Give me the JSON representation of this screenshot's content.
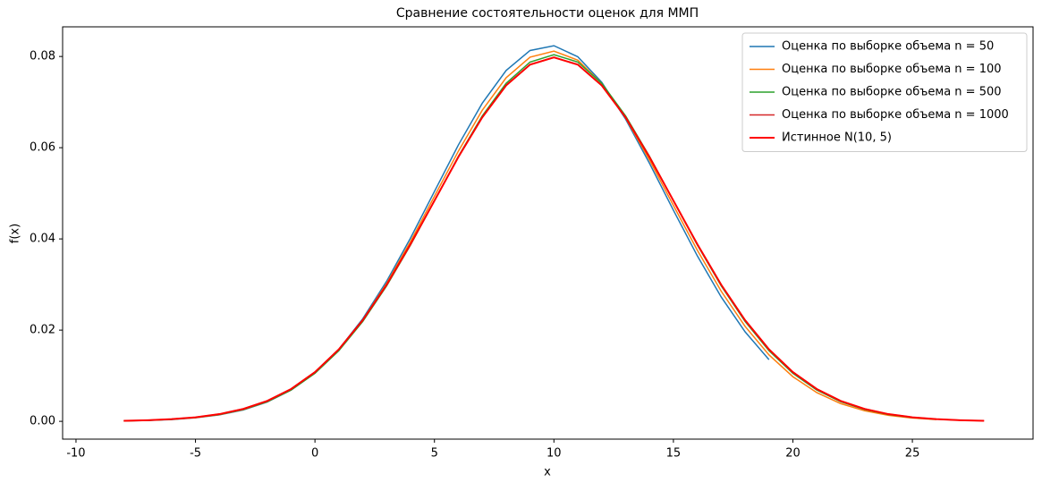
{
  "chart_data": {
    "type": "line",
    "title": "Сравнение состоятельности оценок для ММП",
    "x_label": "x",
    "y_label": "f(x)",
    "x": [
      -8,
      -7,
      -6,
      -5,
      -4,
      -3,
      -2,
      -1,
      0,
      1,
      2,
      3,
      4,
      5,
      6,
      7,
      8,
      9,
      10,
      11,
      12,
      13,
      14,
      15,
      16,
      17,
      18,
      19,
      20,
      21,
      22,
      23,
      24,
      25,
      26,
      27,
      28
    ],
    "series": [
      {
        "name": "Оценка по выборке объема n = 50",
        "color": "#1f77b4",
        "width": 1.5,
        "values": [
          9.5e-05,
          0.0002,
          0.0004,
          0.00077,
          0.00141,
          0.0025,
          0.00422,
          0.00683,
          0.01061,
          0.01579,
          0.02249,
          0.03072,
          0.0402,
          0.0504,
          0.06058,
          0.06974,
          0.07693,
          0.08131,
          0.08236,
          0.07993,
          0.07434,
          0.06625,
          0.05657,
          0.04629,
          0.03629,
          0.02726,
          0.01963,
          0.01353,
          null,
          null,
          null,
          null,
          null,
          null,
          null,
          null,
          null
        ]
      },
      {
        "name": "Оценка по выборке объема n = 100",
        "color": "#ff7f0e",
        "width": 1.5,
        "values": [
          0.000105,
          0.00022,
          0.00043,
          0.00081,
          0.00147,
          0.00257,
          0.0043,
          0.0069,
          0.01063,
          0.0157,
          0.02224,
          0.03024,
          0.03944,
          0.04934,
          0.05923,
          0.0682,
          0.07534,
          0.07984,
          0.08118,
          0.07919,
          0.0741,
          0.06652,
          0.05729,
          0.04734,
          0.03752,
          0.02853,
          0.02082,
          0.01457,
          0.00978,
          0.0063,
          0.00389,
          0.00231,
          0.00131,
          0.00072,
          0.00038,
          null,
          null
        ]
      },
      {
        "name": "Оценка по выборке объема n = 500",
        "color": "#2ca02c",
        "width": 1.5,
        "values": [
          0.00011,
          0.00023,
          0.00044,
          0.00083,
          0.0015,
          0.00259,
          0.00431,
          0.00687,
          0.01053,
          0.0155,
          0.02189,
          0.0297,
          0.03868,
          0.04837,
          0.05808,
          0.06696,
          0.07412,
          0.07878,
          0.0804,
          0.07878,
          0.07412,
          0.06696,
          0.05808,
          0.04837,
          0.03868,
          0.0297,
          0.02189,
          0.0155,
          0.01053,
          0.00687,
          0.00431,
          0.00259,
          0.0015,
          0.00083,
          0.00044,
          null,
          null
        ]
      },
      {
        "name": "Оценка по выборке объема n = 1000",
        "color": "#d62728",
        "width": 1.5,
        "values": [
          0.00012,
          0.00025,
          0.00048,
          0.00089,
          0.00158,
          0.00272,
          0.00448,
          0.00709,
          0.0108,
          0.01579,
          0.02218,
          0.02995,
          0.03884,
          0.04839,
          0.05794,
          0.06664,
          0.07365,
          0.07821,
          0.07979,
          0.07821,
          0.07365,
          0.06664,
          0.05794,
          0.04839,
          0.03884,
          0.02995,
          0.02218,
          0.01579,
          0.0108,
          0.00709,
          0.00448,
          0.00272,
          0.00158,
          0.00089,
          0.00048,
          0.00025,
          0.00012
        ]
      },
      {
        "name": "Истинное N(10, 5)",
        "color": "#ff0000",
        "width": 2,
        "values": [
          0.00012,
          0.00025,
          0.00048,
          0.00089,
          0.00158,
          0.00272,
          0.00448,
          0.00709,
          0.0108,
          0.01579,
          0.02218,
          0.02995,
          0.03884,
          0.04839,
          0.05794,
          0.06664,
          0.07365,
          0.07821,
          0.07979,
          0.07821,
          0.07365,
          0.06664,
          0.05794,
          0.04839,
          0.03884,
          0.02995,
          0.02218,
          0.01579,
          0.0108,
          0.00709,
          0.00448,
          0.00272,
          0.00158,
          0.00089,
          0.00048,
          0.00025,
          0.00012
        ]
      }
    ],
    "xlim": [
      -10.56,
      30.05
    ],
    "ylim": [
      -0.0039,
      0.0865
    ],
    "xticks": [
      -10,
      -5,
      0,
      5,
      10,
      15,
      20,
      25
    ],
    "yticks": [
      {
        "value": 0,
        "label": "0.00"
      },
      {
        "value": 0.02,
        "label": "0.02"
      },
      {
        "value": 0.04,
        "label": "0.04"
      },
      {
        "value": 0.06,
        "label": "0.06"
      },
      {
        "value": 0.08,
        "label": "0.08"
      }
    ],
    "legend": "upper right"
  }
}
